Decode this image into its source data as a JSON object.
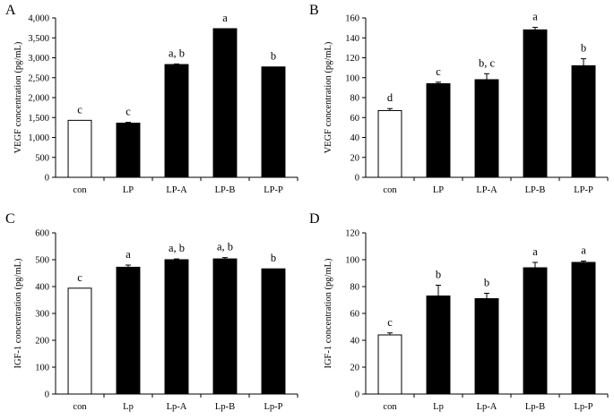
{
  "figure": {
    "title": "VEGF and IGF-1 concentration bar charts"
  },
  "chart_data": [
    {
      "type": "bar",
      "panel": "A",
      "ylabel": "VEGF concentration (pg/mL)",
      "ylim": [
        0,
        4000
      ],
      "yticks": [
        0,
        500,
        1000,
        1500,
        2000,
        2500,
        3000,
        3500,
        4000
      ],
      "ytick_labels": [
        "0",
        "500",
        "1,000",
        "1,500",
        "2,000",
        "2,500",
        "3,000",
        "3,500",
        "4,000"
      ],
      "categories": [
        "con",
        "LP",
        "LP-A",
        "LP-B",
        "LP-P"
      ],
      "values": [
        1430,
        1360,
        2830,
        3730,
        2770
      ],
      "errors": [
        0,
        20,
        15,
        0,
        0
      ],
      "significance": [
        "c",
        "c",
        "a, b",
        "a",
        "b"
      ],
      "colors": [
        "#ffffff",
        "#000000",
        "#000000",
        "#000000",
        "#000000"
      ]
    },
    {
      "type": "bar",
      "panel": "B",
      "ylabel": "VEGF concentration (pg/mL)",
      "ylim": [
        0,
        160
      ],
      "yticks": [
        0,
        20,
        40,
        60,
        80,
        100,
        120,
        140,
        160
      ],
      "ytick_labels": [
        "0",
        "20",
        "40",
        "60",
        "80",
        "100",
        "120",
        "140",
        "160"
      ],
      "categories": [
        "con",
        "LP",
        "LP-A",
        "LP-B",
        "LP-P"
      ],
      "values": [
        67,
        94,
        98,
        148,
        112
      ],
      "errors": [
        2,
        1.5,
        6,
        2.5,
        7
      ],
      "significance": [
        "d",
        "c",
        "b, c",
        "a",
        "b"
      ],
      "colors": [
        "#ffffff",
        "#000000",
        "#000000",
        "#000000",
        "#000000"
      ]
    },
    {
      "type": "bar",
      "panel": "C",
      "ylabel": "IGF-1 concentration (pg/mL)",
      "ylim": [
        0,
        600
      ],
      "yticks": [
        0,
        100,
        200,
        300,
        400,
        500,
        600
      ],
      "ytick_labels": [
        "0",
        "100",
        "200",
        "300",
        "400",
        "500",
        "600"
      ],
      "categories": [
        "con",
        "Lp",
        "Lp-A",
        "Lp-B",
        "Lp-P"
      ],
      "values": [
        394,
        472,
        500,
        503,
        466
      ],
      "errors": [
        0,
        8,
        3,
        5,
        0
      ],
      "significance": [
        "c",
        "a",
        "a, b",
        "a, b",
        "b"
      ],
      "colors": [
        "#ffffff",
        "#000000",
        "#000000",
        "#000000",
        "#000000"
      ]
    },
    {
      "type": "bar",
      "panel": "D",
      "ylabel": "IGF-1 concentration (pg/mL)",
      "ylim": [
        0,
        120
      ],
      "yticks": [
        0,
        20,
        40,
        60,
        80,
        100,
        120
      ],
      "ytick_labels": [
        "0",
        "20",
        "40",
        "60",
        "80",
        "100",
        "120"
      ],
      "categories": [
        "con",
        "Lp",
        "Lp-A",
        "Lp-B",
        "Lp-P"
      ],
      "values": [
        44,
        73,
        71,
        94,
        98
      ],
      "errors": [
        1.5,
        8,
        4,
        4,
        1
      ],
      "significance": [
        "c",
        "b",
        "b",
        "a",
        "a"
      ],
      "colors": [
        "#ffffff",
        "#000000",
        "#000000",
        "#000000",
        "#000000"
      ]
    }
  ]
}
